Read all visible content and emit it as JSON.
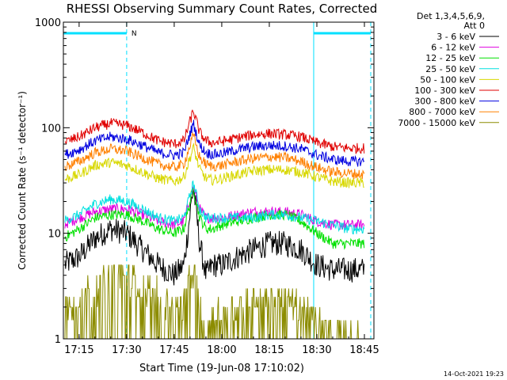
{
  "chart_data": {
    "type": "line",
    "title": "RHESSI Observing Summary Count Rates, Corrected",
    "xlabel": "Start Time (19-Jun-08 17:10:02)",
    "ylabel": "Corrected Count Rate (s⁻¹ detector⁻¹)",
    "y_scale": "log",
    "ylim": [
      1,
      1000
    ],
    "xlim": [
      "17:10:02",
      "18:48:00"
    ],
    "x_ticks": [
      "17:15",
      "17:30",
      "17:45",
      "18:00",
      "18:15",
      "18:30",
      "18:45"
    ],
    "y_ticks": [
      "1",
      "10",
      "100",
      "1000"
    ],
    "grid": false,
    "legend_position": "right",
    "legend_header": [
      "Det 1,3,4,5,6,9,",
      "Att 0"
    ],
    "timestamp": "14-Oct-2021 19:23",
    "annotations": {
      "marker_label": "N",
      "night_bars": [
        {
          "start": "17:10:02",
          "end": "17:30:00"
        },
        {
          "start": "18:29:00",
          "end": "18:47:00"
        }
      ],
      "vlines_solid": [
        "17:10:02",
        "18:29:00"
      ],
      "vlines_dashed": [
        "17:30:00",
        "18:47:00"
      ]
    },
    "x_minutes": [
      0,
      5,
      10,
      15,
      20,
      25,
      30,
      35,
      38,
      41,
      43,
      45,
      47,
      50,
      55,
      60,
      65,
      70,
      75,
      80,
      85,
      90,
      95
    ],
    "series": [
      {
        "name": "3 - 6 keV",
        "color": "#000000",
        "values": [
          5,
          6,
          9,
          11,
          10,
          7,
          5,
          4,
          5,
          28,
          8,
          4,
          5,
          5,
          6,
          7,
          8,
          8,
          7,
          5,
          4.5,
          4.5,
          4.5
        ]
      },
      {
        "name": "6 - 12 keV",
        "color": "#e000e0",
        "values": [
          12,
          14,
          16,
          17,
          17,
          15,
          13,
          12,
          13,
          28,
          17,
          14,
          14,
          14,
          15,
          16,
          16,
          16,
          15,
          13,
          12,
          12,
          12
        ]
      },
      {
        "name": "12 - 25 keV",
        "color": "#00e000",
        "values": [
          9,
          11,
          14,
          15,
          15,
          13,
          11,
          10,
          11,
          27,
          14,
          11,
          11,
          12,
          13,
          14,
          15,
          15,
          13,
          10,
          8,
          8,
          8
        ]
      },
      {
        "name": "25 - 50 keV",
        "color": "#00e0e0",
        "values": [
          13,
          15,
          19,
          21,
          20,
          17,
          14,
          13,
          14,
          30,
          17,
          14,
          14,
          14,
          14,
          14,
          15,
          15,
          14,
          13,
          12,
          11,
          11
        ]
      },
      {
        "name": "50 - 100 keV",
        "color": "#d8d800",
        "values": [
          32,
          36,
          44,
          47,
          44,
          38,
          33,
          31,
          34,
          65,
          40,
          33,
          32,
          33,
          36,
          39,
          40,
          40,
          38,
          34,
          31,
          30,
          30
        ]
      },
      {
        "name": "100 - 300 keV",
        "color": "#e00000",
        "values": [
          72,
          82,
          100,
          110,
          105,
          90,
          75,
          70,
          75,
          145,
          90,
          75,
          72,
          74,
          80,
          86,
          88,
          86,
          82,
          72,
          66,
          64,
          64
        ]
      },
      {
        "name": "300 - 800 keV",
        "color": "#0000e0",
        "values": [
          55,
          62,
          75,
          82,
          78,
          68,
          58,
          55,
          58,
          110,
          68,
          58,
          56,
          57,
          62,
          66,
          68,
          67,
          63,
          55,
          50,
          48,
          48
        ]
      },
      {
        "name": "800 - 7000 keV",
        "color": "#ff8000",
        "values": [
          42,
          48,
          58,
          63,
          60,
          52,
          45,
          42,
          45,
          85,
          52,
          45,
          43,
          44,
          48,
          51,
          53,
          52,
          48,
          42,
          38,
          37,
          36
        ]
      },
      {
        "name": "7000 - 15000 keV",
        "color": "#8c8c00",
        "values": [
          2,
          2.5,
          3,
          4,
          4,
          3,
          2.5,
          2,
          2,
          5,
          2,
          1,
          1.5,
          2,
          2,
          2.5,
          2.5,
          2.5,
          2,
          1.5,
          1,
          1,
          1
        ]
      }
    ]
  }
}
